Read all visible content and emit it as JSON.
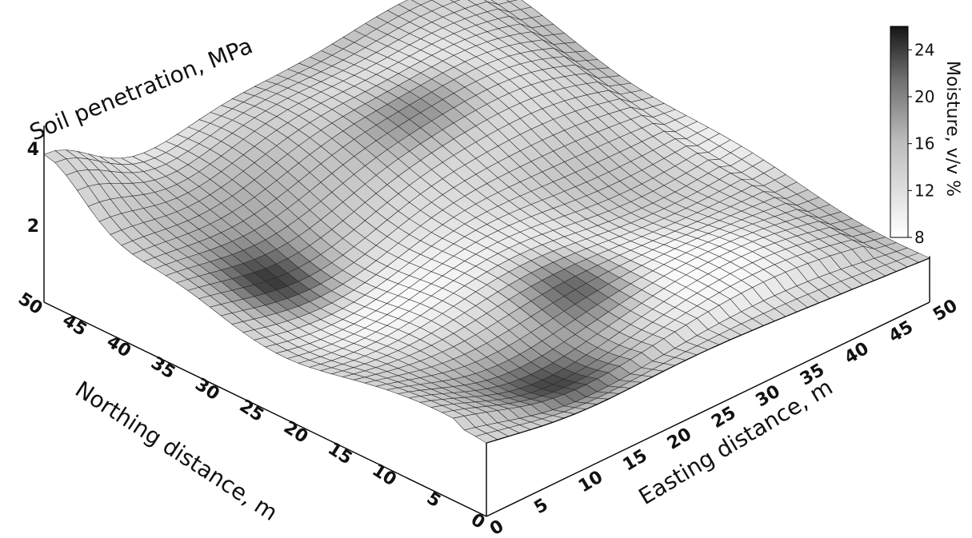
{
  "chart_data": {
    "type": "surface",
    "z_axis": {
      "label": "Soil penetration, MPa",
      "ticks": [
        "4",
        "2"
      ]
    },
    "north_axis": {
      "label": "Northing distance, m",
      "ticks": [
        "0",
        "5",
        "10",
        "15",
        "20",
        "25",
        "30",
        "35",
        "40",
        "45",
        "50"
      ],
      "range": [
        0,
        50
      ]
    },
    "east_axis": {
      "label": "Easting distance, m",
      "ticks": [
        "0",
        "5",
        "10",
        "15",
        "20",
        "25",
        "30",
        "35",
        "40",
        "45",
        "50"
      ],
      "range": [
        0,
        50
      ]
    },
    "colorbar": {
      "label": "Moisture, v/v %",
      "ticks": [
        "24",
        "20",
        "16",
        "12",
        "8"
      ],
      "range": [
        8,
        26
      ],
      "colors": [
        "#ffffff",
        "#222222"
      ]
    },
    "grid": true
  }
}
